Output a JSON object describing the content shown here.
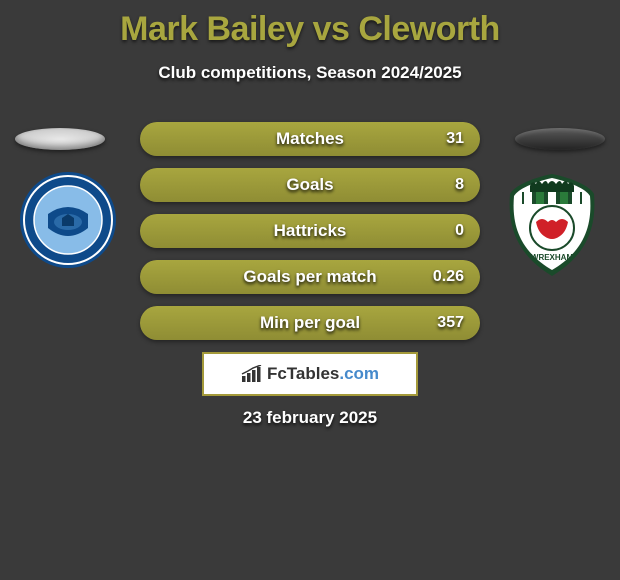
{
  "title": "Mark Bailey vs Cleworth",
  "subtitle": "Club competitions, Season 2024/2025",
  "date": "23 february 2025",
  "brand": {
    "name": "FcTables",
    "suffix": ".com"
  },
  "bar_style": {
    "fill_color": "#a8a63f",
    "empty_color": "#7a7838",
    "full_color": "#a8a63f",
    "height": 34,
    "radius": 17,
    "text_color": "#ffffff"
  },
  "colors": {
    "background": "#3a3a3a",
    "title": "#a8a63f",
    "brand_border": "#a49a3a",
    "brand_dot": "#468acc"
  },
  "logo_left": {
    "outer": "#0e4a8a",
    "inner": "#88bce8",
    "accent": "#ffffff"
  },
  "logo_right": {
    "outer": "#1a4a2a",
    "stripe_white": "#ffffff",
    "stripe_green": "#2a7a3a",
    "center": "#d02028",
    "center_bg": "#ffffff"
  },
  "stats": [
    {
      "label": "Matches",
      "value": "31",
      "fill_pct": 100
    },
    {
      "label": "Goals",
      "value": "8",
      "fill_pct": 100
    },
    {
      "label": "Hattricks",
      "value": "0",
      "fill_pct": 100
    },
    {
      "label": "Goals per match",
      "value": "0.26",
      "fill_pct": 100
    },
    {
      "label": "Min per goal",
      "value": "357",
      "fill_pct": 100
    }
  ]
}
